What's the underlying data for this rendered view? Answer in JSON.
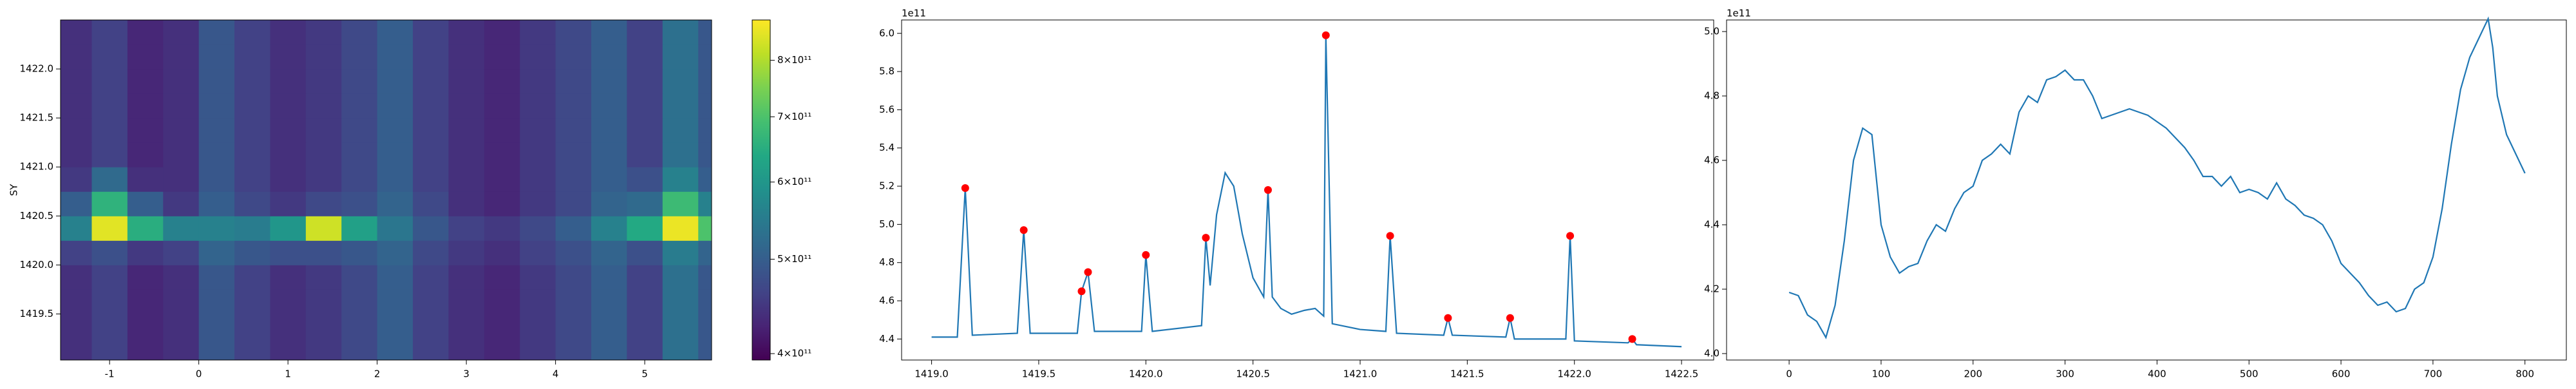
{
  "chart_data": [
    {
      "type": "heatmap",
      "ylabel": "SY",
      "colormap": "viridis",
      "clog": true,
      "xlim": [
        -1.55,
        5.75
      ],
      "ylim": [
        1419.03,
        1422.5
      ],
      "xticks": [
        -1,
        0,
        1,
        2,
        3,
        4,
        5
      ],
      "yticks": [
        1419.5,
        {
          "value": 1420,
          "label": "1420.0"
        },
        1420.5,
        {
          "value": 1421,
          "label": "1421.0"
        },
        1421.5,
        {
          "value": 1422,
          "label": "1422.0"
        }
      ],
      "clim": [
        394000000000.0,
        880000000000.0
      ],
      "cticks": [
        {
          "value": 400000000000.0,
          "label": "4×10¹¹"
        },
        {
          "value": 500000000000.0,
          "label": "5×10¹¹"
        },
        {
          "value": 600000000000.0,
          "label": "6×10¹¹"
        },
        {
          "value": 700000000000.0,
          "label": "7×10¹¹"
        },
        {
          "value": 800000000000.0,
          "label": "8×10¹¹"
        }
      ],
      "xbins": [
        -1.6,
        -1.2,
        -0.8,
        -0.4,
        0,
        0.4,
        0.8,
        1.2,
        1.6,
        2.0,
        2.4,
        2.8,
        3.2,
        3.6,
        4.0,
        4.4,
        4.8,
        5.2,
        5.6,
        6.0
      ],
      "ybins": [
        1419.0,
        1419.25,
        1419.5,
        1419.75,
        1420.0,
        1420.25,
        1420.5,
        1420.75,
        1421.0,
        1421.25,
        1421.5,
        1421.75,
        1422.0,
        1422.25,
        1422.5
      ],
      "z": [
        [
          440000000000.0,
          460000000000.0,
          430000000000.0,
          440000000000.0,
          490000000000.0,
          460000000000.0,
          440000000000.0,
          450000000000.0,
          470000000000.0,
          500000000000.0,
          460000000000.0,
          440000000000.0,
          430000000000.0,
          450000000000.0,
          470000000000.0,
          500000000000.0,
          460000000000.0,
          530000000000.0,
          490000000000.0
        ],
        [
          440000000000.0,
          460000000000.0,
          430000000000.0,
          440000000000.0,
          490000000000.0,
          460000000000.0,
          440000000000.0,
          450000000000.0,
          470000000000.0,
          500000000000.0,
          460000000000.0,
          440000000000.0,
          430000000000.0,
          450000000000.0,
          470000000000.0,
          500000000000.0,
          460000000000.0,
          530000000000.0,
          490000000000.0
        ],
        [
          440000000000.0,
          460000000000.0,
          430000000000.0,
          440000000000.0,
          490000000000.0,
          460000000000.0,
          440000000000.0,
          450000000000.0,
          470000000000.0,
          500000000000.0,
          460000000000.0,
          440000000000.0,
          430000000000.0,
          450000000000.0,
          470000000000.0,
          500000000000.0,
          460000000000.0,
          530000000000.0,
          490000000000.0
        ],
        [
          440000000000.0,
          460000000000.0,
          430000000000.0,
          440000000000.0,
          490000000000.0,
          460000000000.0,
          440000000000.0,
          450000000000.0,
          470000000000.0,
          500000000000.0,
          460000000000.0,
          440000000000.0,
          430000000000.0,
          450000000000.0,
          470000000000.0,
          500000000000.0,
          460000000000.0,
          530000000000.0,
          490000000000.0
        ],
        [
          460000000000.0,
          480000000000.0,
          450000000000.0,
          460000000000.0,
          510000000000.0,
          490000000000.0,
          480000000000.0,
          480000000000.0,
          490000000000.0,
          510000000000.0,
          470000000000.0,
          450000000000.0,
          440000000000.0,
          460000000000.0,
          480000000000.0,
          510000000000.0,
          480000000000.0,
          550000000000.0,
          510000000000.0
        ],
        [
          560000000000.0,
          850000000000.0,
          650000000000.0,
          560000000000.0,
          560000000000.0,
          550000000000.0,
          600000000000.0,
          830000000000.0,
          620000000000.0,
          540000000000.0,
          490000000000.0,
          460000000000.0,
          450000000000.0,
          470000000000.0,
          500000000000.0,
          560000000000.0,
          640000000000.0,
          860000000000.0,
          700000000000.0
        ],
        [
          500000000000.0,
          660000000000.0,
          500000000000.0,
          450000000000.0,
          500000000000.0,
          470000000000.0,
          450000000000.0,
          470000000000.0,
          480000000000.0,
          510000000000.0,
          470000000000.0,
          440000000000.0,
          430000000000.0,
          450000000000.0,
          470000000000.0,
          510000000000.0,
          520000000000.0,
          680000000000.0,
          560000000000.0
        ],
        [
          450000000000.0,
          520000000000.0,
          440000000000.0,
          440000000000.0,
          490000000000.0,
          460000000000.0,
          440000000000.0,
          450000000000.0,
          470000000000.0,
          500000000000.0,
          460000000000.0,
          440000000000.0,
          430000000000.0,
          450000000000.0,
          470000000000.0,
          500000000000.0,
          480000000000.0,
          560000000000.0,
          500000000000.0
        ],
        [
          440000000000.0,
          460000000000.0,
          430000000000.0,
          440000000000.0,
          490000000000.0,
          460000000000.0,
          440000000000.0,
          450000000000.0,
          470000000000.0,
          500000000000.0,
          460000000000.0,
          440000000000.0,
          430000000000.0,
          450000000000.0,
          470000000000.0,
          500000000000.0,
          460000000000.0,
          530000000000.0,
          490000000000.0
        ],
        [
          440000000000.0,
          460000000000.0,
          430000000000.0,
          440000000000.0,
          490000000000.0,
          460000000000.0,
          440000000000.0,
          450000000000.0,
          470000000000.0,
          500000000000.0,
          460000000000.0,
          440000000000.0,
          430000000000.0,
          450000000000.0,
          470000000000.0,
          500000000000.0,
          460000000000.0,
          530000000000.0,
          490000000000.0
        ],
        [
          440000000000.0,
          460000000000.0,
          430000000000.0,
          440000000000.0,
          490000000000.0,
          460000000000.0,
          440000000000.0,
          450000000000.0,
          470000000000.0,
          500000000000.0,
          460000000000.0,
          440000000000.0,
          430000000000.0,
          450000000000.0,
          470000000000.0,
          500000000000.0,
          460000000000.0,
          530000000000.0,
          490000000000.0
        ],
        [
          440000000000.0,
          460000000000.0,
          430000000000.0,
          440000000000.0,
          490000000000.0,
          460000000000.0,
          440000000000.0,
          450000000000.0,
          470000000000.0,
          500000000000.0,
          460000000000.0,
          440000000000.0,
          430000000000.0,
          450000000000.0,
          470000000000.0,
          500000000000.0,
          460000000000.0,
          530000000000.0,
          490000000000.0
        ],
        [
          440000000000.0,
          460000000000.0,
          430000000000.0,
          440000000000.0,
          490000000000.0,
          460000000000.0,
          440000000000.0,
          450000000000.0,
          470000000000.0,
          500000000000.0,
          460000000000.0,
          440000000000.0,
          430000000000.0,
          450000000000.0,
          470000000000.0,
          500000000000.0,
          460000000000.0,
          530000000000.0,
          490000000000.0
        ],
        [
          440000000000.0,
          460000000000.0,
          430000000000.0,
          440000000000.0,
          490000000000.0,
          460000000000.0,
          440000000000.0,
          450000000000.0,
          470000000000.0,
          500000000000.0,
          460000000000.0,
          440000000000.0,
          430000000000.0,
          450000000000.0,
          470000000000.0,
          500000000000.0,
          460000000000.0,
          530000000000.0,
          490000000000.0
        ]
      ]
    },
    {
      "type": "line",
      "offset_text": "1e11",
      "xlim": [
        1418.86,
        1422.65
      ],
      "ylim": [
        4.29,
        6.07
      ],
      "xticks": [
        {
          "value": 1419,
          "label": "1419.0"
        },
        1419.5,
        {
          "value": 1420,
          "label": "1420.0"
        },
        1420.5,
        {
          "value": 1421,
          "label": "1421.0"
        },
        1421.5,
        {
          "value": 1422,
          "label": "1422.0"
        },
        1422.5
      ],
      "yticks": [
        4.4,
        4.6,
        4.8,
        {
          "value": 5,
          "label": "5.0"
        },
        5.2,
        5.4,
        5.6,
        5.8,
        {
          "value": 6,
          "label": "6.0"
        }
      ],
      "series": [
        {
          "style": "line",
          "color": "#1f77b4",
          "x": [
            1419.0,
            1419.12,
            1419.157,
            1419.19,
            1419.4,
            1419.43,
            1419.46,
            1419.68,
            1419.7,
            1419.73,
            1419.76,
            1419.98,
            1420.0,
            1420.03,
            1420.26,
            1420.28,
            1420.3,
            1420.33,
            1420.37,
            1420.41,
            1420.45,
            1420.5,
            1420.55,
            1420.57,
            1420.59,
            1420.63,
            1420.68,
            1420.74,
            1420.79,
            1420.83,
            1420.84,
            1420.87,
            1421.0,
            1421.12,
            1421.14,
            1421.17,
            1421.39,
            1421.41,
            1421.43,
            1421.68,
            1421.7,
            1421.72,
            1421.96,
            1421.98,
            1422.0,
            1422.25,
            1422.27,
            1422.29,
            1422.5
          ],
          "values": [
            4.41,
            4.41,
            5.19,
            4.42,
            4.43,
            4.97,
            4.43,
            4.43,
            4.65,
            4.75,
            4.44,
            4.44,
            4.84,
            4.44,
            4.47,
            4.93,
            4.68,
            5.05,
            5.27,
            5.2,
            4.95,
            4.72,
            4.62,
            5.18,
            4.62,
            4.56,
            4.53,
            4.55,
            4.56,
            4.52,
            5.99,
            4.48,
            4.45,
            4.44,
            4.94,
            4.43,
            4.42,
            4.51,
            4.42,
            4.41,
            4.51,
            4.4,
            4.4,
            4.94,
            4.39,
            4.38,
            4.4,
            4.37,
            4.36
          ]
        },
        {
          "style": "points",
          "color": "#ff0000",
          "x": [
            1419.157,
            1419.43,
            1419.7,
            1419.73,
            1420.0,
            1420.28,
            1420.57,
            1420.84,
            1421.14,
            1421.41,
            1421.7,
            1421.98,
            1422.27
          ],
          "values": [
            5.19,
            4.97,
            4.65,
            4.75,
            4.84,
            4.93,
            5.18,
            5.99,
            4.94,
            4.51,
            4.51,
            4.94,
            4.4
          ]
        }
      ]
    },
    {
      "type": "line",
      "offset_text": "1e11",
      "xlim": [
        -68,
        845
      ],
      "ylim": [
        3.98,
        5.036
      ],
      "xticks": [
        0,
        100,
        200,
        300,
        400,
        500,
        600,
        700,
        800
      ],
      "yticks": [
        {
          "value": 4,
          "label": "4.0"
        },
        4.2,
        4.4,
        4.6,
        4.8,
        {
          "value": 5,
          "label": "5.0"
        }
      ],
      "series": [
        {
          "style": "line",
          "color": "#1f77b4",
          "x": [
            0,
            10,
            20,
            30,
            40,
            50,
            60,
            70,
            80,
            90,
            100,
            110,
            120,
            130,
            140,
            150,
            160,
            170,
            180,
            190,
            200,
            210,
            220,
            230,
            240,
            250,
            260,
            270,
            280,
            290,
            300,
            310,
            320,
            330,
            340,
            350,
            360,
            370,
            380,
            390,
            400,
            410,
            420,
            430,
            440,
            450,
            460,
            470,
            480,
            490,
            500,
            510,
            520,
            530,
            540,
            550,
            560,
            570,
            580,
            590,
            600,
            610,
            620,
            630,
            640,
            650,
            660,
            670,
            680,
            690,
            700,
            710,
            720,
            730,
            740,
            750,
            760,
            765,
            770,
            780,
            790,
            800
          ],
          "values": [
            4.19,
            4.18,
            4.12,
            4.1,
            4.05,
            4.15,
            4.35,
            4.6,
            4.7,
            4.68,
            4.4,
            4.3,
            4.25,
            4.27,
            4.28,
            4.35,
            4.4,
            4.38,
            4.45,
            4.5,
            4.52,
            4.6,
            4.62,
            4.65,
            4.62,
            4.75,
            4.8,
            4.78,
            4.85,
            4.86,
            4.88,
            4.85,
            4.85,
            4.8,
            4.73,
            4.74,
            4.75,
            4.76,
            4.75,
            4.74,
            4.72,
            4.7,
            4.67,
            4.64,
            4.6,
            4.55,
            4.55,
            4.52,
            4.55,
            4.5,
            4.51,
            4.5,
            4.48,
            4.53,
            4.48,
            4.46,
            4.43,
            4.42,
            4.4,
            4.35,
            4.28,
            4.25,
            4.22,
            4.18,
            4.15,
            4.16,
            4.13,
            4.14,
            4.2,
            4.22,
            4.3,
            4.45,
            4.65,
            4.82,
            4.92,
            4.98,
            5.04,
            4.95,
            4.8,
            4.68,
            4.62,
            4.56
          ]
        }
      ]
    }
  ]
}
